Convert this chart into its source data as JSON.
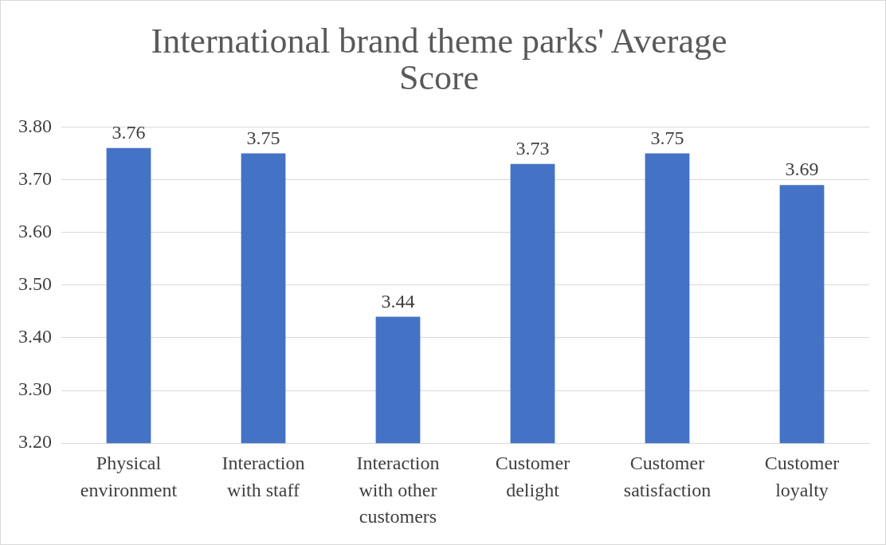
{
  "chart_data": {
    "type": "bar",
    "title": "International brand theme parks' Average Score",
    "categories": [
      "Physical environment",
      "Interaction with staff",
      "Interaction with other customers",
      "Customer delight",
      "Customer satisfaction",
      "Customer loyalty"
    ],
    "values": [
      3.76,
      3.75,
      3.44,
      3.73,
      3.75,
      3.69
    ],
    "color": "#4472c4",
    "ylim": [
      3.2,
      3.8
    ],
    "yticks": [
      {
        "value": 3.2,
        "label": "3.20"
      },
      {
        "value": 3.3,
        "label": "3.30"
      },
      {
        "value": 3.4,
        "label": "3.40"
      },
      {
        "value": 3.5,
        "label": "3.50"
      },
      {
        "value": 3.6,
        "label": "3.60"
      },
      {
        "value": 3.7,
        "label": "3.70"
      },
      {
        "value": 3.8,
        "label": "3.80"
      }
    ],
    "grid": "y",
    "legend": false,
    "data_labels": true
  }
}
